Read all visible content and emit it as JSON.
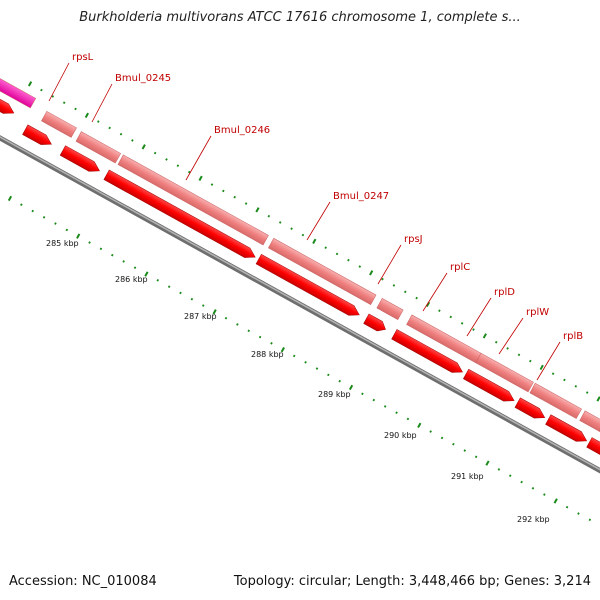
{
  "title": "Burkholderia multivorans ATCC 17616 chromosome 1, complete s...",
  "footer": {
    "accession": "Accession: NC_010084",
    "summary": "Topology: circular; Length: 3,448,466 bp; Genes: 3,214"
  },
  "genes": [
    {
      "name": "rpsL"
    },
    {
      "name": "Bmul_0245"
    },
    {
      "name": "Bmul_0246"
    },
    {
      "name": "Bmul_0247"
    },
    {
      "name": "rpsJ"
    },
    {
      "name": "rplC"
    },
    {
      "name": "rplD"
    },
    {
      "name": "rplW"
    },
    {
      "name": "rplB"
    }
  ],
  "scale_labels": [
    "285 kbp",
    "286 kbp",
    "287 kbp",
    "288 kbp",
    "289 kbp",
    "290 kbp",
    "291 kbp",
    "292 kbp"
  ],
  "colors": {
    "gene_feature": "#ff0000",
    "cds_feature": "#f08080",
    "highlight_feature": "#ff00aa",
    "label": "#c00000",
    "tick": "#1a8a1a",
    "backbone": "#808080"
  }
}
